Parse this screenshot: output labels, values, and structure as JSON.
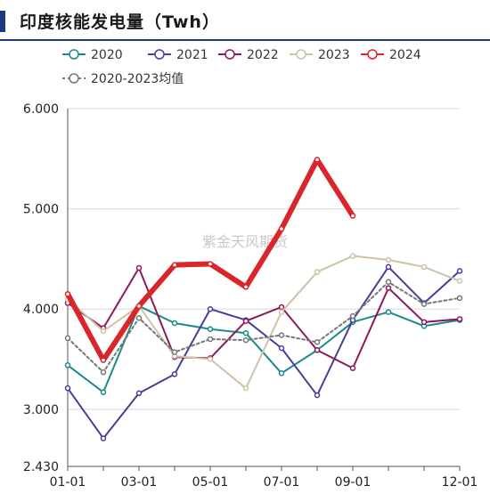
{
  "chart_data": {
    "type": "line",
    "title": "印度核能发电量（Twh）",
    "watermark": "紫金天风期货",
    "x": [
      "01-01",
      "02-01",
      "03-01",
      "04-01",
      "05-01",
      "06-01",
      "07-01",
      "08-01",
      "09-01",
      "10-01",
      "11-01",
      "12-01"
    ],
    "xticks": [
      "01-01",
      "03-01",
      "05-01",
      "07-01",
      "09-01",
      "12-01"
    ],
    "yticks": [
      "2.430",
      "3.000",
      "4.000",
      "5.000",
      "6.000"
    ],
    "ylim": [
      2.43,
      6.0
    ],
    "grid": true,
    "legend_position": "top",
    "series": [
      {
        "name": "2020",
        "color": "#1a8a8a",
        "values": [
          3.44,
          3.17,
          4.03,
          3.86,
          3.8,
          3.76,
          3.36,
          3.59,
          3.87,
          3.97,
          3.83,
          3.89
        ]
      },
      {
        "name": "2021",
        "color": "#4a3d9a",
        "values": [
          3.21,
          2.71,
          3.16,
          3.35,
          4.0,
          3.89,
          3.61,
          3.14,
          3.89,
          4.42,
          4.06,
          4.38
        ]
      },
      {
        "name": "2022",
        "color": "#8b1a5c",
        "values": [
          4.06,
          3.81,
          4.41,
          3.52,
          3.51,
          3.88,
          4.02,
          3.59,
          3.41,
          4.21,
          3.87,
          3.9
        ]
      },
      {
        "name": "2023",
        "color": "#cfc2a8",
        "values": [
          4.1,
          3.78,
          4.03,
          3.53,
          3.5,
          3.21,
          3.97,
          4.37,
          4.53,
          4.49,
          4.42,
          4.28
        ]
      },
      {
        "name": "2024",
        "color": "#d9262b",
        "values": [
          4.15,
          3.49,
          4.03,
          4.44,
          4.45,
          4.22,
          4.8,
          5.49,
          4.93,
          null,
          null,
          null
        ]
      },
      {
        "name": "2020-2023均值",
        "color": "#777777",
        "dashed": true,
        "values": [
          3.71,
          3.37,
          3.91,
          3.57,
          3.7,
          3.69,
          3.74,
          3.67,
          3.93,
          4.27,
          4.05,
          4.11
        ]
      }
    ]
  }
}
